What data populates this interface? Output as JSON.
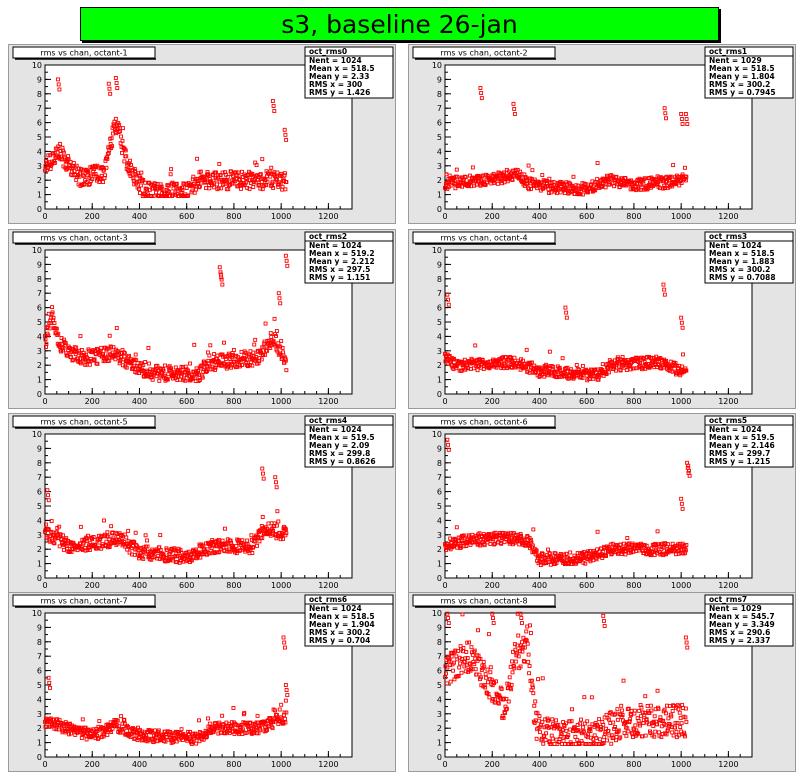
{
  "banner": {
    "title": "s3, baseline 26-jan"
  },
  "colors": {
    "points": "#ff0000",
    "frame": "#e4e4e4",
    "banner": "#00ff00"
  },
  "chart_data": [
    {
      "type": "scatter",
      "title": "rms vs chan, octant-1",
      "stats": {
        "name": "oct_rms0",
        "lines": [
          "Nent = 1024",
          "Mean x = 518.5",
          "Mean y = 2.33",
          "RMS x = 300",
          "RMS y = 1.426"
        ]
      },
      "xlim": [
        0,
        1300
      ],
      "ylim": [
        0,
        10
      ],
      "xticks": [
        0,
        200,
        400,
        600,
        800,
        1000,
        1200
      ],
      "yticks": [
        0,
        1,
        2,
        3,
        4,
        5,
        6,
        7,
        8,
        9,
        10
      ],
      "profile": [
        [
          0,
          3.0
        ],
        [
          60,
          4.0
        ],
        [
          100,
          3.0
        ],
        [
          150,
          2.2
        ],
        [
          250,
          2.5
        ],
        [
          300,
          6.0
        ],
        [
          350,
          3.0
        ],
        [
          390,
          2.0
        ],
        [
          420,
          1.3
        ],
        [
          600,
          1.2
        ],
        [
          650,
          2.0
        ],
        [
          800,
          2.0
        ],
        [
          1000,
          2.0
        ],
        [
          1024,
          1.8
        ]
      ],
      "spread": 0.9,
      "peaks": [
        {
          "x": 55,
          "y": 9.0
        },
        {
          "x": 270,
          "y": 8.7
        },
        {
          "x": 300,
          "y": 9.1
        },
        {
          "x": 965,
          "y": 7.5
        },
        {
          "x": 1015,
          "y": 5.5
        }
      ]
    },
    {
      "type": "scatter",
      "title": "rms vs chan, octant-2",
      "stats": {
        "name": "oct_rms1",
        "lines": [
          "Nent = 1029",
          "Mean x = 518.5",
          "Mean y = 1.804",
          "RMS x = 300.2",
          "RMS y = 0.7945"
        ]
      },
      "xlim": [
        0,
        1300
      ],
      "ylim": [
        0,
        10
      ],
      "xticks": [
        0,
        200,
        400,
        600,
        800,
        1000,
        1200
      ],
      "yticks": [
        0,
        1,
        2,
        3,
        4,
        5,
        6,
        7,
        8,
        9,
        10
      ],
      "profile": [
        [
          0,
          1.8
        ],
        [
          200,
          2.0
        ],
        [
          300,
          2.5
        ],
        [
          350,
          1.8
        ],
        [
          450,
          1.5
        ],
        [
          600,
          1.4
        ],
        [
          700,
          2.0
        ],
        [
          800,
          1.7
        ],
        [
          900,
          1.8
        ],
        [
          1024,
          2.0
        ]
      ],
      "spread": 0.6,
      "peaks": [
        {
          "x": 150,
          "y": 8.4
        },
        {
          "x": 290,
          "y": 7.3
        },
        {
          "x": 930,
          "y": 7.0
        },
        {
          "x": 1000,
          "y": 6.6
        },
        {
          "x": 1020,
          "y": 6.6
        }
      ]
    },
    {
      "type": "scatter",
      "title": "rms vs chan, octant-3",
      "stats": {
        "name": "oct_rms2",
        "lines": [
          "Nent = 1024",
          "Mean x = 519.2",
          "Mean y = 2.212",
          "RMS x = 297.5",
          "RMS y = 1.151"
        ]
      },
      "xlim": [
        0,
        1300
      ],
      "ylim": [
        0,
        10
      ],
      "xticks": [
        0,
        200,
        400,
        600,
        800,
        1000,
        1200
      ],
      "yticks": [
        0,
        1,
        2,
        3,
        4,
        5,
        6,
        7,
        8,
        9,
        10
      ],
      "profile": [
        [
          0,
          3.5
        ],
        [
          30,
          5.5
        ],
        [
          60,
          3.5
        ],
        [
          150,
          2.5
        ],
        [
          300,
          2.8
        ],
        [
          380,
          2.0
        ],
        [
          450,
          1.5
        ],
        [
          650,
          1.3
        ],
        [
          700,
          2.2
        ],
        [
          900,
          2.5
        ],
        [
          970,
          4.0
        ],
        [
          1024,
          2.0
        ]
      ],
      "spread": 0.8,
      "peaks": [
        {
          "x": 740,
          "y": 8.8
        },
        {
          "x": 745,
          "y": 8.3
        },
        {
          "x": 1020,
          "y": 9.6
        },
        {
          "x": 990,
          "y": 7.0
        }
      ]
    },
    {
      "type": "scatter",
      "title": "rms vs chan, octant-4",
      "stats": {
        "name": "oct_rms3",
        "lines": [
          "Nent = 1024",
          "Mean x = 518.5",
          "Mean y = 1.883",
          "RMS x = 300.2",
          "RMS y = 0.7088"
        ]
      },
      "xlim": [
        0,
        1300
      ],
      "ylim": [
        0,
        10
      ],
      "xticks": [
        0,
        200,
        400,
        600,
        800,
        1000,
        1200
      ],
      "yticks": [
        0,
        1,
        2,
        3,
        4,
        5,
        6,
        7,
        8,
        9,
        10
      ],
      "profile": [
        [
          0,
          2.5
        ],
        [
          50,
          2.0
        ],
        [
          300,
          2.2
        ],
        [
          400,
          1.6
        ],
        [
          650,
          1.3
        ],
        [
          700,
          2.0
        ],
        [
          900,
          2.2
        ],
        [
          1024,
          1.5
        ]
      ],
      "spread": 0.6,
      "peaks": [
        {
          "x": 10,
          "y": 6.9
        },
        {
          "x": 510,
          "y": 6.0
        },
        {
          "x": 925,
          "y": 7.6
        },
        {
          "x": 1000,
          "y": 5.3
        }
      ]
    },
    {
      "type": "scatter",
      "title": "rms vs chan, octant-5",
      "stats": {
        "name": "oct_rms4",
        "lines": [
          "Nent = 1024",
          "Mean x = 519.5",
          "Mean y = 2.09",
          "RMS x = 299.8",
          "RMS y = 0.8626"
        ]
      },
      "xlim": [
        0,
        1300
      ],
      "ylim": [
        0,
        10
      ],
      "xticks": [
        0,
        200,
        400,
        600,
        800,
        1000,
        1200
      ],
      "yticks": [
        0,
        1,
        2,
        3,
        4,
        5,
        6,
        7,
        8,
        9,
        10
      ],
      "profile": [
        [
          0,
          3.0
        ],
        [
          50,
          2.8
        ],
        [
          100,
          2.2
        ],
        [
          250,
          2.5
        ],
        [
          300,
          2.8
        ],
        [
          400,
          1.8
        ],
        [
          600,
          1.5
        ],
        [
          700,
          2.2
        ],
        [
          880,
          2.2
        ],
        [
          930,
          3.5
        ],
        [
          1024,
          3.0
        ]
      ],
      "spread": 0.7,
      "peaks": [
        {
          "x": 10,
          "y": 6.1
        },
        {
          "x": 920,
          "y": 7.6
        },
        {
          "x": 975,
          "y": 7.0
        }
      ]
    },
    {
      "type": "scatter",
      "title": "rms vs chan, octant-6",
      "stats": {
        "name": "oct_rms5",
        "lines": [
          "Nent = 1024",
          "Mean x = 519.5",
          "Mean y = 2.146",
          "RMS x = 299.7",
          "RMS y = 1.215"
        ]
      },
      "xlim": [
        0,
        1300
      ],
      "ylim": [
        0,
        10
      ],
      "xticks": [
        0,
        200,
        400,
        600,
        800,
        1000,
        1200
      ],
      "yticks": [
        0,
        1,
        2,
        3,
        4,
        5,
        6,
        7,
        8,
        9,
        10
      ],
      "profile": [
        [
          0,
          2.3
        ],
        [
          100,
          2.6
        ],
        [
          250,
          2.8
        ],
        [
          350,
          2.6
        ],
        [
          400,
          1.3
        ],
        [
          600,
          1.4
        ],
        [
          700,
          2.0
        ],
        [
          900,
          2.0
        ],
        [
          1000,
          2.0
        ],
        [
          1024,
          2.2
        ]
      ],
      "spread": 0.6,
      "peaks": [
        {
          "x": 10,
          "y": 9.6
        },
        {
          "x": 1025,
          "y": 8.0
        },
        {
          "x": 1030,
          "y": 7.8
        },
        {
          "x": 1000,
          "y": 5.5
        }
      ]
    },
    {
      "type": "scatter",
      "title": "rms vs chan, octant-7",
      "stats": {
        "name": "oct_rms6",
        "lines": [
          "Nent = 1024",
          "Mean x = 518.5",
          "Mean y = 1.904",
          "RMS x = 300.2",
          "RMS y = 0.704"
        ]
      },
      "xlim": [
        0,
        1300
      ],
      "ylim": [
        0,
        10
      ],
      "xticks": [
        0,
        200,
        400,
        600,
        800,
        1000,
        1200
      ],
      "yticks": [
        0,
        1,
        2,
        3,
        4,
        5,
        6,
        7,
        8,
        9,
        10
      ],
      "profile": [
        [
          0,
          2.5
        ],
        [
          100,
          2.0
        ],
        [
          200,
          1.5
        ],
        [
          300,
          2.2
        ],
        [
          400,
          1.5
        ],
        [
          650,
          1.3
        ],
        [
          700,
          2.0
        ],
        [
          900,
          2.0
        ],
        [
          1024,
          2.8
        ]
      ],
      "spread": 0.6,
      "peaks": [
        {
          "x": 15,
          "y": 5.5
        },
        {
          "x": 1010,
          "y": 8.3
        },
        {
          "x": 1020,
          "y": 5.0
        }
      ]
    },
    {
      "type": "scatter",
      "title": "rms vs chan, octant-8",
      "stats": {
        "name": "oct_rms7",
        "lines": [
          "Nent = 1029",
          "Mean x = 545.7",
          "Mean y = 3.349",
          "RMS x = 290.6",
          "RMS y = 2.337"
        ]
      },
      "xlim": [
        0,
        1300
      ],
      "ylim": [
        0,
        10
      ],
      "xticks": [
        0,
        200,
        400,
        600,
        800,
        1000,
        1200
      ],
      "yticks": [
        0,
        1,
        2,
        3,
        4,
        5,
        6,
        7,
        8,
        9,
        10
      ],
      "profile": [
        [
          0,
          6.0
        ],
        [
          100,
          7.0
        ],
        [
          200,
          5.0
        ],
        [
          250,
          3.5
        ],
        [
          300,
          7.0
        ],
        [
          350,
          8.0
        ],
        [
          370,
          4.0
        ],
        [
          390,
          2.0
        ],
        [
          450,
          1.5
        ],
        [
          650,
          1.5
        ],
        [
          750,
          2.5
        ],
        [
          900,
          2.5
        ],
        [
          1024,
          2.5
        ]
      ],
      "spread": 1.6,
      "peaks": [
        {
          "x": 10,
          "y": 10.0
        },
        {
          "x": 200,
          "y": 10.0
        },
        {
          "x": 320,
          "y": 10.0
        },
        {
          "x": 670,
          "y": 9.8
        },
        {
          "x": 1020,
          "y": 8.3
        }
      ]
    }
  ]
}
